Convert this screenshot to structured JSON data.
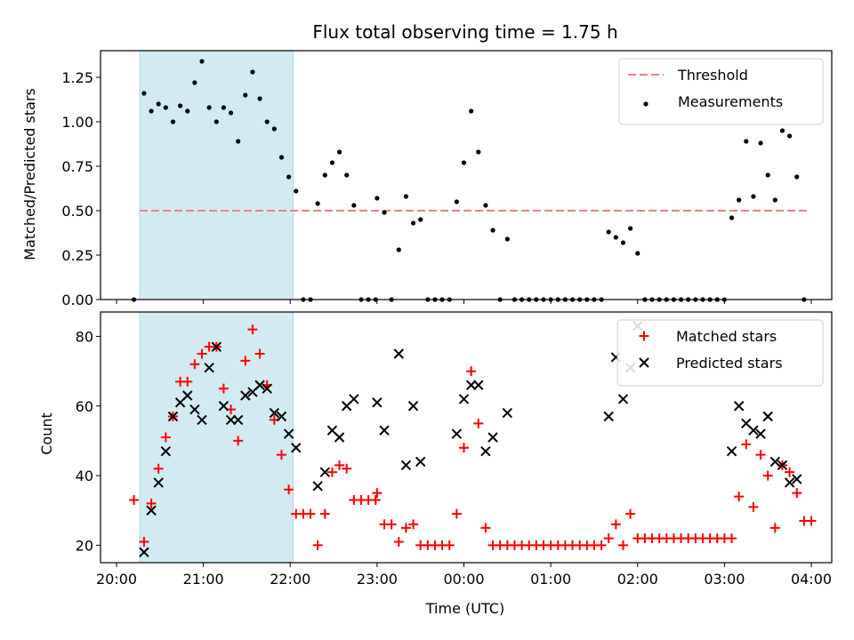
{
  "chart_data": {
    "title": "Flux total observing time = 1.75 h",
    "xlabel": "Time (UTC)",
    "x_tick_labels": [
      "20:00",
      "21:00",
      "22:00",
      "23:00",
      "00:00",
      "01:00",
      "02:00",
      "03:00",
      "04:00"
    ],
    "shaded_interval": {
      "start": "20:16",
      "end": "22:02",
      "color": "#add8e6"
    },
    "top": {
      "type": "scatter",
      "ylabel": "Matched/Predicted stars",
      "ylim": [
        0,
        1.4
      ],
      "yticks": [
        "0.00",
        "0.25",
        "0.50",
        "0.75",
        "1.00",
        "1.25"
      ],
      "legend_location": "top-right",
      "threshold": {
        "name": "Threshold",
        "value": 0.5,
        "x_start": "20:16",
        "x_end": "03:59",
        "color": "#f08080",
        "style": "dashed"
      },
      "series": [
        {
          "name": "Measurements",
          "color": "#000000",
          "marker": "dot",
          "points": [
            [
              "20:12",
              0.0
            ],
            [
              "20:19",
              1.16
            ],
            [
              "20:24",
              1.06
            ],
            [
              "20:29",
              1.1
            ],
            [
              "20:34",
              1.08
            ],
            [
              "20:39",
              1.0
            ],
            [
              "20:44",
              1.09
            ],
            [
              "20:49",
              1.06
            ],
            [
              "20:54",
              1.22
            ],
            [
              "20:59",
              1.34
            ],
            [
              "21:04",
              1.08
            ],
            [
              "21:09",
              1.0
            ],
            [
              "21:14",
              1.08
            ],
            [
              "21:19",
              1.05
            ],
            [
              "21:24",
              0.89
            ],
            [
              "21:29",
              1.15
            ],
            [
              "21:34",
              1.28
            ],
            [
              "21:39",
              1.13
            ],
            [
              "21:44",
              1.0
            ],
            [
              "21:49",
              0.96
            ],
            [
              "21:54",
              0.8
            ],
            [
              "21:59",
              0.69
            ],
            [
              "22:04",
              0.61
            ],
            [
              "22:09",
              0.0
            ],
            [
              "22:14",
              0.0
            ],
            [
              "22:19",
              0.54
            ],
            [
              "22:24",
              0.7
            ],
            [
              "22:29",
              0.77
            ],
            [
              "22:34",
              0.83
            ],
            [
              "22:39",
              0.7
            ],
            [
              "22:44",
              0.53
            ],
            [
              "22:49",
              0.0
            ],
            [
              "22:54",
              0.0
            ],
            [
              "22:59",
              0.0
            ],
            [
              "23:00",
              0.57
            ],
            [
              "23:05",
              0.49
            ],
            [
              "23:10",
              0.0
            ],
            [
              "23:15",
              0.28
            ],
            [
              "23:20",
              0.58
            ],
            [
              "23:25",
              0.43
            ],
            [
              "23:30",
              0.45
            ],
            [
              "23:35",
              0.0
            ],
            [
              "23:40",
              0.0
            ],
            [
              "23:45",
              0.0
            ],
            [
              "23:50",
              0.0
            ],
            [
              "23:55",
              0.55
            ],
            [
              "00:00",
              0.77
            ],
            [
              "00:05",
              1.06
            ],
            [
              "00:10",
              0.83
            ],
            [
              "00:15",
              0.53
            ],
            [
              "00:20",
              0.39
            ],
            [
              "00:25",
              0.0
            ],
            [
              "00:30",
              0.34
            ],
            [
              "00:35",
              0.0
            ],
            [
              "00:40",
              0.0
            ],
            [
              "00:45",
              0.0
            ],
            [
              "00:50",
              0.0
            ],
            [
              "00:55",
              0.0
            ],
            [
              "01:00",
              0.0
            ],
            [
              "01:05",
              0.0
            ],
            [
              "01:10",
              0.0
            ],
            [
              "01:15",
              0.0
            ],
            [
              "01:20",
              0.0
            ],
            [
              "01:25",
              0.0
            ],
            [
              "01:30",
              0.0
            ],
            [
              "01:35",
              0.0
            ],
            [
              "01:40",
              0.38
            ],
            [
              "01:45",
              0.35
            ],
            [
              "01:50",
              0.32
            ],
            [
              "01:55",
              0.4
            ],
            [
              "02:00",
              0.26
            ],
            [
              "02:05",
              0.0
            ],
            [
              "02:10",
              0.0
            ],
            [
              "02:15",
              0.0
            ],
            [
              "02:20",
              0.0
            ],
            [
              "02:25",
              0.0
            ],
            [
              "02:30",
              0.0
            ],
            [
              "02:35",
              0.0
            ],
            [
              "02:40",
              0.0
            ],
            [
              "02:45",
              0.0
            ],
            [
              "02:50",
              0.0
            ],
            [
              "02:55",
              0.0
            ],
            [
              "03:00",
              0.0
            ],
            [
              "03:05",
              0.46
            ],
            [
              "03:10",
              0.56
            ],
            [
              "03:15",
              0.89
            ],
            [
              "03:20",
              0.58
            ],
            [
              "03:25",
              0.88
            ],
            [
              "03:30",
              0.7
            ],
            [
              "03:35",
              0.56
            ],
            [
              "03:40",
              0.95
            ],
            [
              "03:45",
              0.92
            ],
            [
              "03:50",
              0.69
            ],
            [
              "03:55",
              0.0
            ]
          ]
        }
      ]
    },
    "bottom": {
      "type": "scatter",
      "ylabel": "Count",
      "ylim": [
        15,
        87
      ],
      "yticks": [
        "20",
        "40",
        "60",
        "80"
      ],
      "legend_location": "top-right",
      "series": [
        {
          "name": "Matched stars",
          "color": "#ff0000",
          "marker": "plus",
          "points": [
            [
              "20:12",
              33
            ],
            [
              "20:19",
              21
            ],
            [
              "20:24",
              32
            ],
            [
              "20:29",
              42
            ],
            [
              "20:34",
              51
            ],
            [
              "20:39",
              57
            ],
            [
              "20:44",
              67
            ],
            [
              "20:49",
              67
            ],
            [
              "20:54",
              72
            ],
            [
              "20:59",
              75
            ],
            [
              "21:04",
              77
            ],
            [
              "21:09",
              77
            ],
            [
              "21:14",
              65
            ],
            [
              "21:19",
              59
            ],
            [
              "21:24",
              50
            ],
            [
              "21:29",
              73
            ],
            [
              "21:34",
              82
            ],
            [
              "21:39",
              75
            ],
            [
              "21:44",
              66
            ],
            [
              "21:49",
              56
            ],
            [
              "21:54",
              46
            ],
            [
              "21:59",
              36
            ],
            [
              "22:04",
              29
            ],
            [
              "22:09",
              29
            ],
            [
              "22:14",
              29
            ],
            [
              "22:19",
              20
            ],
            [
              "22:24",
              29
            ],
            [
              "22:29",
              41
            ],
            [
              "22:34",
              43
            ],
            [
              "22:39",
              42
            ],
            [
              "22:44",
              33
            ],
            [
              "22:49",
              33
            ],
            [
              "22:54",
              33
            ],
            [
              "22:59",
              33
            ],
            [
              "23:00",
              35
            ],
            [
              "23:05",
              26
            ],
            [
              "23:10",
              26
            ],
            [
              "23:15",
              21
            ],
            [
              "23:20",
              25
            ],
            [
              "23:25",
              26
            ],
            [
              "23:30",
              20
            ],
            [
              "23:35",
              20
            ],
            [
              "23:40",
              20
            ],
            [
              "23:45",
              20
            ],
            [
              "23:50",
              20
            ],
            [
              "23:55",
              29
            ],
            [
              "00:00",
              48
            ],
            [
              "00:05",
              70
            ],
            [
              "00:10",
              55
            ],
            [
              "00:15",
              25
            ],
            [
              "00:20",
              20
            ],
            [
              "00:25",
              20
            ],
            [
              "00:30",
              20
            ],
            [
              "00:35",
              20
            ],
            [
              "00:40",
              20
            ],
            [
              "00:45",
              20
            ],
            [
              "00:50",
              20
            ],
            [
              "00:55",
              20
            ],
            [
              "01:00",
              20
            ],
            [
              "01:05",
              20
            ],
            [
              "01:10",
              20
            ],
            [
              "01:15",
              20
            ],
            [
              "01:20",
              20
            ],
            [
              "01:25",
              20
            ],
            [
              "01:30",
              20
            ],
            [
              "01:35",
              20
            ],
            [
              "01:40",
              22
            ],
            [
              "01:45",
              26
            ],
            [
              "01:50",
              20
            ],
            [
              "01:55",
              29
            ],
            [
              "02:00",
              22
            ],
            [
              "02:05",
              22
            ],
            [
              "02:10",
              22
            ],
            [
              "02:15",
              22
            ],
            [
              "02:20",
              22
            ],
            [
              "02:25",
              22
            ],
            [
              "02:30",
              22
            ],
            [
              "02:35",
              22
            ],
            [
              "02:40",
              22
            ],
            [
              "02:45",
              22
            ],
            [
              "02:50",
              22
            ],
            [
              "02:55",
              22
            ],
            [
              "03:00",
              22
            ],
            [
              "03:05",
              22
            ],
            [
              "03:10",
              34
            ],
            [
              "03:15",
              49
            ],
            [
              "03:20",
              31
            ],
            [
              "03:25",
              46
            ],
            [
              "03:30",
              40
            ],
            [
              "03:35",
              25
            ],
            [
              "03:40",
              43
            ],
            [
              "03:45",
              41
            ],
            [
              "03:50",
              35
            ],
            [
              "03:55",
              27
            ],
            [
              "04:00",
              27
            ]
          ]
        },
        {
          "name": "Predicted stars",
          "color": "#000000",
          "marker": "x",
          "points": [
            [
              "20:19",
              18
            ],
            [
              "20:24",
              30
            ],
            [
              "20:29",
              38
            ],
            [
              "20:34",
              47
            ],
            [
              "20:39",
              57
            ],
            [
              "20:44",
              61
            ],
            [
              "20:49",
              63
            ],
            [
              "20:54",
              59
            ],
            [
              "20:59",
              56
            ],
            [
              "21:04",
              71
            ],
            [
              "21:09",
              77
            ],
            [
              "21:14",
              60
            ],
            [
              "21:19",
              56
            ],
            [
              "21:24",
              56
            ],
            [
              "21:29",
              63
            ],
            [
              "21:34",
              64
            ],
            [
              "21:39",
              66
            ],
            [
              "21:44",
              65
            ],
            [
              "21:49",
              58
            ],
            [
              "21:54",
              57
            ],
            [
              "21:59",
              52
            ],
            [
              "22:04",
              48
            ],
            [
              "22:19",
              37
            ],
            [
              "22:24",
              41
            ],
            [
              "22:29",
              53
            ],
            [
              "22:34",
              51
            ],
            [
              "22:39",
              60
            ],
            [
              "22:44",
              62
            ],
            [
              "23:00",
              61
            ],
            [
              "23:05",
              53
            ],
            [
              "23:15",
              75
            ],
            [
              "23:20",
              43
            ],
            [
              "23:25",
              60
            ],
            [
              "23:30",
              44
            ],
            [
              "23:55",
              52
            ],
            [
              "00:00",
              62
            ],
            [
              "00:05",
              66
            ],
            [
              "00:10",
              66
            ],
            [
              "00:15",
              47
            ],
            [
              "00:20",
              51
            ],
            [
              "00:30",
              58
            ],
            [
              "01:40",
              57
            ],
            [
              "01:45",
              74
            ],
            [
              "01:50",
              62
            ],
            [
              "01:55",
              71
            ],
            [
              "02:00",
              83
            ],
            [
              "03:05",
              47
            ],
            [
              "03:10",
              60
            ],
            [
              "03:15",
              55
            ],
            [
              "03:20",
              53
            ],
            [
              "03:25",
              52
            ],
            [
              "03:30",
              57
            ],
            [
              "03:35",
              44
            ],
            [
              "03:40",
              43
            ],
            [
              "03:45",
              38
            ],
            [
              "03:50",
              39
            ]
          ]
        }
      ]
    }
  }
}
